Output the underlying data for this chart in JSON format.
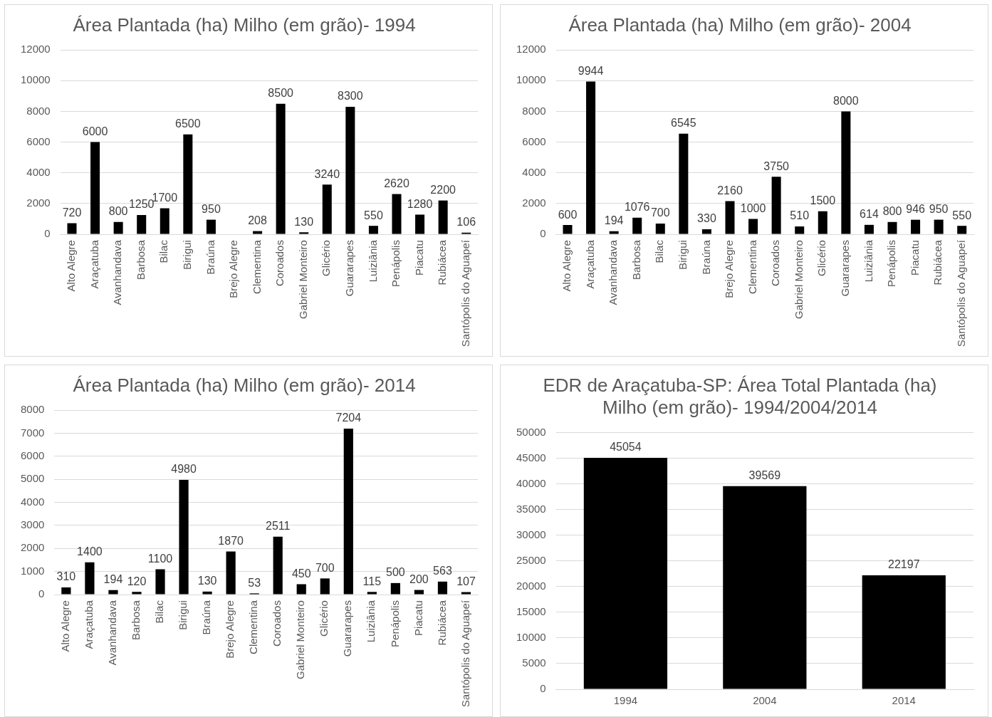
{
  "chart_data": [
    {
      "type": "bar",
      "title": "Área Plantada (ha) Milho (em grão)- 1994",
      "categories": [
        "Alto Alegre",
        "Araçatuba",
        "Avanhandava",
        "Barbosa",
        "Bilac",
        "Birigui",
        "Braúna",
        "Brejo Alegre",
        "Clementina",
        "Coroados",
        "Gabriel Monteiro",
        "Glicério",
        "Guararapes",
        "Luiziânia",
        "Penápolis",
        "Piacatu",
        "Rubiácea",
        "Santópolis do Aguapeí"
      ],
      "values": [
        720,
        6000,
        800,
        1250,
        1700,
        6500,
        950,
        null,
        208,
        8500,
        130,
        3240,
        8300,
        550,
        2620,
        1280,
        2200,
        106
      ],
      "color": "#000000",
      "ylim": [
        0,
        12000
      ],
      "yticks": [
        0,
        2000,
        4000,
        6000,
        8000,
        10000,
        12000
      ],
      "grid": "y",
      "data_labels": true
    },
    {
      "type": "bar",
      "title": "Área Plantada (ha) Milho (em grão)- 2004",
      "categories": [
        "Alto Alegre",
        "Araçatuba",
        "Avanhandava",
        "Barbosa",
        "Bilac",
        "Birigui",
        "Braúna",
        "Brejo Alegre",
        "Clementina",
        "Coroados",
        "Gabriel Monteiro",
        "Glicério",
        "Guararapes",
        "Luiziânia",
        "Penápolis",
        "Piacatu",
        "Rubiácea",
        "Santópolis do Aguapeí"
      ],
      "values": [
        600,
        9944,
        194,
        1076,
        700,
        6545,
        330,
        2160,
        1000,
        3750,
        510,
        1500,
        8000,
        614,
        800,
        946,
        950,
        550
      ],
      "color": "#000000",
      "ylim": [
        0,
        12000
      ],
      "yticks": [
        0,
        2000,
        4000,
        6000,
        8000,
        10000,
        12000
      ],
      "grid": "y",
      "data_labels": true
    },
    {
      "type": "bar",
      "title": "Área Plantada (ha) Milho (em grão)- 2014",
      "categories": [
        "Alto Alegre",
        "Araçatuba",
        "Avanhandava",
        "Barbosa",
        "Bilac",
        "Birigui",
        "Braúna",
        "Brejo Alegre",
        "Clementina",
        "Coroados",
        "Gabriel Monteiro",
        "Glicério",
        "Guararapes",
        "Luiziânia",
        "Penápolis",
        "Piacatu",
        "Rubiácea",
        "Santópolis do Aguapeí"
      ],
      "values": [
        310,
        1400,
        194,
        120,
        1100,
        4980,
        130,
        1870,
        53,
        2511,
        450,
        700,
        7204,
        115,
        500,
        200,
        563,
        107
      ],
      "color": "#000000",
      "ylim": [
        0,
        8000
      ],
      "yticks": [
        0,
        1000,
        2000,
        3000,
        4000,
        5000,
        6000,
        7000,
        8000
      ],
      "grid": "y",
      "data_labels": true
    },
    {
      "type": "bar",
      "title": "EDR de Araçatuba-SP: Área Total Plantada (ha) Milho (em grão)- 1994/2004/2014",
      "categories": [
        "1994",
        "2004",
        "2014"
      ],
      "values": [
        45054,
        39569,
        22197
      ],
      "color": "#000000",
      "ylim": [
        0,
        50000
      ],
      "yticks": [
        0,
        5000,
        10000,
        15000,
        20000,
        25000,
        30000,
        35000,
        40000,
        45000,
        50000
      ],
      "grid": "y",
      "data_labels": true
    }
  ]
}
